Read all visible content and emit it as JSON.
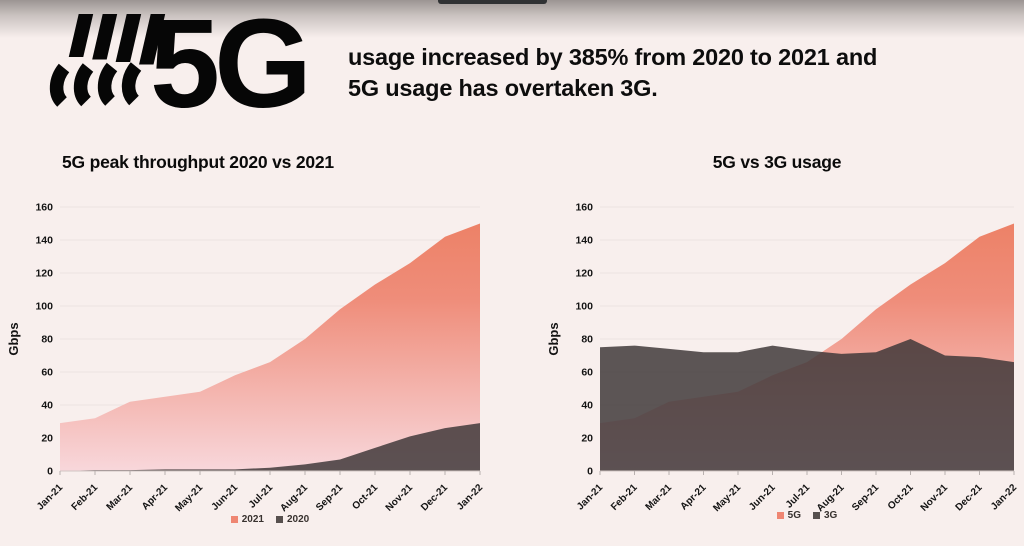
{
  "page": {
    "background_color": "#f8efed",
    "top_bar_color": "#303234"
  },
  "header": {
    "logo_text": "5G",
    "headline": "usage increased by 385% from 2020 to 2021 and 5G usage has overtaken 3G."
  },
  "chart_data": [
    {
      "type": "area",
      "title": "5G peak throughput 2020 vs 2021",
      "xlabel": "",
      "ylabel": "Gbps",
      "ylim": [
        0,
        160
      ],
      "yticks": [
        0,
        20,
        40,
        60,
        80,
        100,
        120,
        140,
        160
      ],
      "grid": true,
      "legend_position": "bottom",
      "x": [
        "Jan-21",
        "Feb-21",
        "Mar-21",
        "Apr-21",
        "May-21",
        "Jun-21",
        "Jul-21",
        "Aug-21",
        "Sep-21",
        "Oct-21",
        "Nov-21",
        "Dec-21",
        "Jan-22"
      ],
      "series": [
        {
          "name": "2021",
          "legend_color": "#ef8672",
          "gradient": [
            [
              "0%",
              "#ec7f63"
            ],
            [
              "35%",
              "#ef8d7a"
            ],
            [
              "100%",
              "#f8d7db"
            ]
          ],
          "values": [
            29,
            32,
            42,
            45,
            48,
            58,
            66,
            80,
            98,
            113,
            126,
            142,
            150
          ]
        },
        {
          "name": "2020",
          "legend_color": "#57504e",
          "color": "#3e3738",
          "opacity": 0.84,
          "values": [
            0,
            0.5,
            0.5,
            1,
            1,
            1,
            2,
            4,
            7,
            14,
            21,
            26,
            29
          ]
        }
      ]
    },
    {
      "type": "area",
      "title": "5G vs 3G usage",
      "xlabel": "",
      "ylabel": "Gbps",
      "ylim": [
        0,
        160
      ],
      "yticks": [
        0,
        20,
        40,
        60,
        80,
        100,
        120,
        140,
        160
      ],
      "grid": true,
      "legend_position": "bottom",
      "x": [
        "Jan-21",
        "Feb-21",
        "Mar-21",
        "Apr-21",
        "May-21",
        "Jun-21",
        "Jul-21",
        "Aug-21",
        "Sep-21",
        "Oct-21",
        "Nov-21",
        "Dec-21",
        "Jan-22"
      ],
      "series": [
        {
          "name": "5G",
          "legend_color": "#ef8672",
          "gradient": [
            [
              "0%",
              "#ec7f63"
            ],
            [
              "35%",
              "#ef8d7a"
            ],
            [
              "100%",
              "#f8d7db"
            ]
          ],
          "values": [
            29,
            32,
            42,
            45,
            48,
            58,
            66,
            80,
            98,
            113,
            126,
            142,
            150
          ]
        },
        {
          "name": "3G",
          "legend_color": "#57504e",
          "color": "#3e3738",
          "opacity": 0.84,
          "values": [
            75,
            76,
            74,
            72,
            72,
            76,
            73,
            71,
            72,
            80,
            70,
            69,
            66
          ]
        }
      ]
    }
  ]
}
